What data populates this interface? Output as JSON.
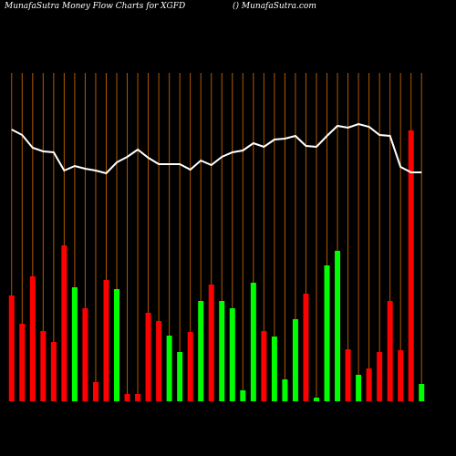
{
  "chart_data": {
    "type": "bar",
    "title": "MunafaSutra  Money Flow  Charts for XGFD",
    "subtitle": "() MunafaSutra.com",
    "categories": [
      null,
      null,
      null,
      null,
      null,
      null,
      null,
      null,
      null,
      null,
      null,
      null,
      null,
      null,
      null,
      null,
      null,
      null,
      null,
      null,
      null,
      null,
      null,
      null,
      null,
      null,
      null,
      null,
      null,
      null,
      null,
      null,
      null,
      null,
      null,
      null,
      null,
      null,
      null,
      null
    ],
    "series": [
      {
        "kind": "bar",
        "values": [
          116,
          85,
          137,
          77,
          65,
          171,
          125,
          102,
          21,
          133,
          123,
          8,
          8,
          97,
          88,
          72,
          54,
          76,
          110,
          128,
          110,
          102,
          12,
          130,
          77,
          71,
          24,
          90,
          118,
          4,
          149,
          165,
          57,
          29,
          36,
          54,
          110,
          56,
          297,
          19
        ],
        "colors": [
          "#ff0000",
          "#ff0000",
          "#ff0000",
          "#ff0000",
          "#ff0000",
          "#ff0000",
          "#00ff00",
          "#ff0000",
          "#ff0000",
          "#ff0000",
          "#00ff00",
          "#ff0000",
          "#ff0000",
          "#ff0000",
          "#ff0000",
          "#00ff00",
          "#00ff00",
          "#ff0000",
          "#00ff00",
          "#ff0000",
          "#00ff00",
          "#00ff00",
          "#00ff00",
          "#00ff00",
          "#ff0000",
          "#00ff00",
          "#00ff00",
          "#00ff00",
          "#ff0000",
          "#00ff00",
          "#00ff00",
          "#00ff00",
          "#ff0000",
          "#00ff00",
          "#ff0000",
          "#ff0000",
          "#ff0000",
          "#ff0000",
          "#ff0000",
          "#00ff00"
        ]
      },
      {
        "kind": "line",
        "color": "#ffffff",
        "values": [
          298,
          292,
          278,
          274,
          273,
          253,
          258,
          255,
          253,
          250,
          262,
          268,
          276,
          267,
          260,
          260,
          260,
          254,
          264,
          259,
          268,
          273,
          275,
          283,
          279,
          287,
          288,
          291,
          280,
          279,
          291,
          302,
          300,
          304,
          301,
          292,
          291,
          257,
          251,
          251
        ]
      }
    ],
    "ylim": [
      0,
      300
    ],
    "grid_color": "#b35900"
  }
}
